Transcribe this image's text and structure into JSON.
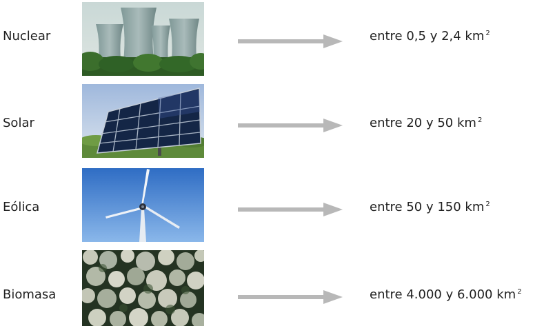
{
  "rows": [
    {
      "label": "Nuclear",
      "image": "nuclear-plant-cooling-towers",
      "value": "entre 0,5 y 2,4 km",
      "unit_superscript": "2"
    },
    {
      "label": "Solar",
      "image": "solar-panel-array",
      "value": "entre 20 y 50 km",
      "unit_superscript": "2"
    },
    {
      "label": "Eólica",
      "image": "wind-turbine-blue-sky",
      "value": "entre 50 y 150 km",
      "unit_superscript": "2"
    },
    {
      "label": "Biomasa",
      "image": "stacked-log-ends",
      "value": "entre 4.000 y 6.000 km",
      "unit_superscript": "2"
    }
  ],
  "colors": {
    "arrow": "#b8b8b8",
    "text": "#1f1f1f"
  }
}
